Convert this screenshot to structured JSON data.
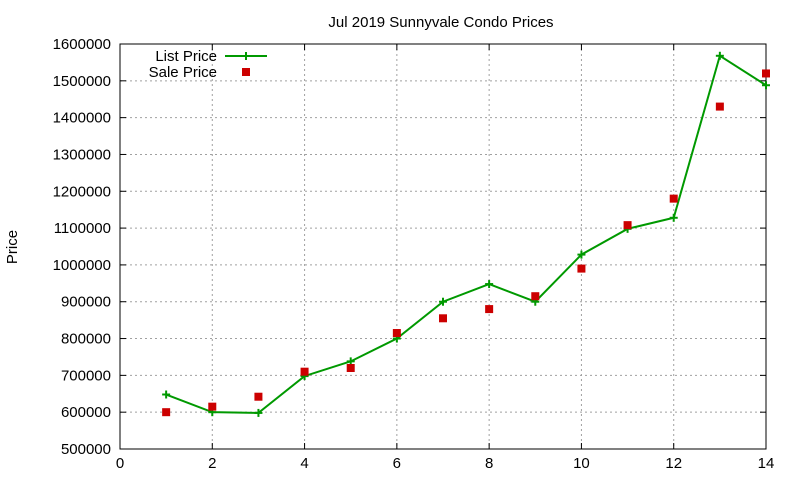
{
  "chart_data": {
    "type": "line",
    "title": "Jul 2019 Sunnyvale Condo Prices",
    "xlabel": "",
    "ylabel": "Price",
    "xlim": [
      0,
      14
    ],
    "ylim": [
      500000,
      1600000
    ],
    "x_ticks": [
      0,
      2,
      4,
      6,
      8,
      10,
      12,
      14
    ],
    "y_ticks": [
      500000,
      600000,
      700000,
      800000,
      900000,
      1000000,
      1100000,
      1200000,
      1300000,
      1400000,
      1500000,
      1600000
    ],
    "grid": true,
    "legend_position": "top-left",
    "series": [
      {
        "name": "List Price",
        "style": "line+cross",
        "color": "#009900",
        "x": [
          1,
          2,
          3,
          4,
          5,
          6,
          7,
          8,
          9,
          10,
          11,
          12,
          13,
          14
        ],
        "y": [
          648000,
          600000,
          598000,
          698000,
          738000,
          800000,
          900000,
          948000,
          900000,
          1028000,
          1098000,
          1128000,
          1568000,
          1488000
        ]
      },
      {
        "name": "Sale Price",
        "style": "square",
        "color": "#cc0000",
        "x": [
          1,
          2,
          3,
          4,
          5,
          6,
          7,
          8,
          9,
          10,
          11,
          12,
          13,
          14
        ],
        "y": [
          600000,
          615000,
          642000,
          710000,
          720000,
          815000,
          855000,
          880000,
          915000,
          990000,
          1108000,
          1180000,
          1430000,
          1520000
        ]
      }
    ]
  }
}
